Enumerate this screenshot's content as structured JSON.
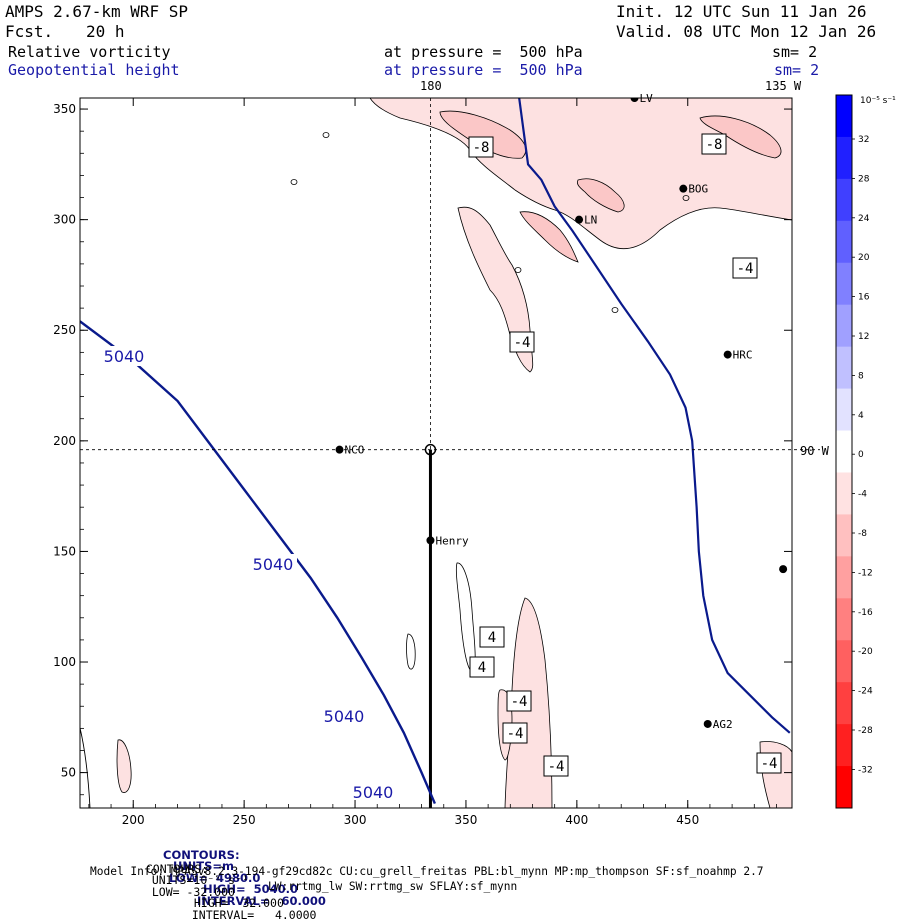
{
  "header": {
    "model": "AMPS 2.67-km WRF SP",
    "init": "Init. 12 UTC Sun 11 Jan 26",
    "fcst_label": "Fcst.",
    "fcst_hours": "20 h",
    "valid": "Valid. 08 UTC Mon 12 Jan 26",
    "field1": "Relative vorticity",
    "field1_pressure": "at pressure =  500 hPa",
    "field1_sm": "sm= 2",
    "field2": "Geopotential height",
    "field2_pressure": "at pressure =  500 hPa",
    "field2_sm": "sm= 2"
  },
  "map_labels": {
    "lon_180": "180",
    "lon_135w": "135 W",
    "lat_90w": "90 W"
  },
  "stations": [
    {
      "id": "NCO",
      "x": 293,
      "y": 196
    },
    {
      "id": "Henry",
      "x": 334,
      "y": 155
    },
    {
      "id": "HRC",
      "x": 468,
      "y": 239
    },
    {
      "id": "BOG",
      "x": 448,
      "y": 314
    },
    {
      "id": "LN",
      "x": 401,
      "y": 300
    },
    {
      "id": "AG2",
      "x": 459,
      "y": 72
    },
    {
      "id": "LV",
      "x": 426,
      "y": 355
    },
    {
      "id": "",
      "x": 493,
      "y": 142
    }
  ],
  "height_contour_labels": [
    "5040",
    "5040",
    "5040",
    "5040"
  ],
  "vorticity_box_labels": [
    "-8",
    "-8",
    "-4",
    "-4",
    "4",
    "4",
    "-4",
    "-4",
    "-4",
    "-4"
  ],
  "colorbar": {
    "unit_label": "10⁻⁵ s⁻¹",
    "ticks": [
      "32",
      "28",
      "24",
      "20",
      "16",
      "12",
      "8",
      "4",
      "0",
      "-4",
      "-8",
      "-12",
      "-16",
      "-20",
      "-24",
      "-28",
      "-32"
    ],
    "positive_colors": [
      "#0000ff",
      "#2020ff",
      "#4040ff",
      "#6060ff",
      "#8080ff",
      "#a0a0ff",
      "#c0c0ff",
      "#e2e2ff",
      "#ffffff"
    ],
    "negative_colors": [
      "#ffe2e2",
      "#ffc0c0",
      "#ffa0a0",
      "#ff8080",
      "#ff6060",
      "#ff4040",
      "#ff2020",
      "#ff0000"
    ]
  },
  "chart_data": {
    "type": "contour",
    "title": "Relative vorticity / Geopotential height at 500 hPa",
    "x_ticks": [
      "200",
      "250",
      "300",
      "350",
      "400",
      "450"
    ],
    "y_ticks": [
      "50",
      "100",
      "150",
      "200",
      "250",
      "300",
      "350"
    ],
    "xlim": [
      176,
      497
    ],
    "ylim": [
      34,
      355
    ],
    "crosshair": {
      "x": 334,
      "y": 196
    },
    "transect": {
      "x": 334,
      "y_from": 34,
      "y_to": 196
    },
    "geopotential_height": {
      "contour": 5040,
      "line": [
        [
          176,
          254
        ],
        [
          200,
          236
        ],
        [
          220,
          218
        ],
        [
          235,
          198
        ],
        [
          250,
          178
        ],
        [
          265,
          158
        ],
        [
          280,
          138
        ],
        [
          292,
          120
        ],
        [
          303,
          102
        ],
        [
          313,
          85
        ],
        [
          322,
          68
        ],
        [
          330,
          50
        ],
        [
          336,
          36
        ]
      ]
    },
    "coastline": [
      [
        374,
        355
      ],
      [
        376,
        340
      ],
      [
        378,
        325
      ],
      [
        384,
        318
      ],
      [
        390,
        306
      ],
      [
        398,
        295
      ],
      [
        408,
        280
      ],
      [
        420,
        262
      ],
      [
        432,
        245
      ],
      [
        442,
        230
      ],
      [
        449,
        215
      ],
      [
        452,
        200
      ],
      [
        453,
        185
      ],
      [
        454,
        170
      ],
      [
        455,
        150
      ],
      [
        457,
        130
      ],
      [
        461,
        110
      ],
      [
        468,
        95
      ],
      [
        478,
        85
      ],
      [
        488,
        75
      ],
      [
        496,
        68
      ]
    ]
  },
  "footer": {
    "line1_label": "CONTOURS:",
    "line1_units": "UNITS=m",
    "line1_low": "LOW=  4980.0",
    "line1_high": "HIGH=  5040.0",
    "line1_interval": "INTERVAL=   60.000",
    "line2_label": "CONTOURS:",
    "line2_units": "UNITS=10⁻⁵ s⁻¹",
    "line2_low": "LOW= -32.000",
    "line2_high": "HIGH=  32.000",
    "line2_interval": "INTERVAL=   4.0000",
    "line3": "Model Info: MPASv8.2.3-194-gf29cd82c CU:cu_grell_freitas PBL:bl_mynn MP:mp_thompson SF:sf_noahmp 2.7",
    "line4": "LW:rrtmg_lw SW:rrtmg_sw SFLAY:sf_mynn"
  }
}
